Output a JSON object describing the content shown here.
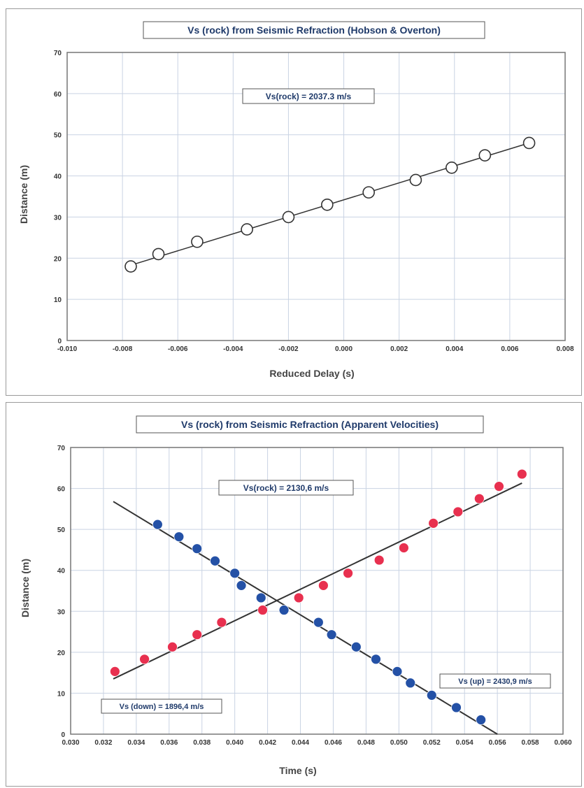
{
  "chart_data": [
    {
      "type": "scatter",
      "title": "Vs (rock) from Seismic Refraction (Hobson & Overton)",
      "xlabel": "Reduced Delay (s)",
      "ylabel": "Distance (m)",
      "xlim": [
        -0.01,
        0.008
      ],
      "ylim": [
        0,
        70
      ],
      "xticks": [
        "-0.010",
        "-0.008",
        "-0.006",
        "-0.004",
        "-0.002",
        "0.000",
        "0.002",
        "0.004",
        "0.006",
        "0.008"
      ],
      "yticks": [
        "0",
        "10",
        "20",
        "30",
        "40",
        "50",
        "60",
        "70"
      ],
      "grid": true,
      "annotation": "Vs(rock) = 2037.3 m/s",
      "series": [
        {
          "marker": "open-circle",
          "color": "#333333",
          "x": [
            -0.0077,
            -0.0067,
            -0.0053,
            -0.0035,
            -0.002,
            -0.0006,
            0.0009,
            0.0026,
            0.0039,
            0.0051,
            0.0067
          ],
          "y": [
            18,
            21,
            24,
            27,
            30,
            33,
            36,
            39,
            42,
            45,
            48
          ]
        }
      ],
      "fit_lines": [
        {
          "color": "#333333",
          "x": [
            -0.0077,
            0.0067
          ],
          "y": [
            18.3,
            48.0
          ]
        }
      ]
    },
    {
      "type": "scatter",
      "title": "Vs (rock) from Seismic Refraction (Apparent Velocities)",
      "xlabel": "Time (s)",
      "ylabel": "Distance (m)",
      "xlim": [
        0.03,
        0.06
      ],
      "ylim": [
        0,
        70
      ],
      "xticks": [
        "0.030",
        "0.032",
        "0.034",
        "0.036",
        "0.038",
        "0.040",
        "0.042",
        "0.044",
        "0.046",
        "0.048",
        "0.050",
        "0.052",
        "0.054",
        "0.056",
        "0.058",
        "0.060"
      ],
      "yticks": [
        "0",
        "10",
        "20",
        "30",
        "40",
        "50",
        "60",
        "70"
      ],
      "grid": true,
      "annotations": [
        {
          "text": "Vs(rock) = 2130,6 m/s"
        },
        {
          "text": "Vs (up) = 2430,9 m/s"
        },
        {
          "text": "Vs (down) = 1896,4 m/s"
        }
      ],
      "series": [
        {
          "marker": "filled-circle",
          "color": "#e8304f",
          "x": [
            0.0327,
            0.0345,
            0.0362,
            0.0377,
            0.0392,
            0.0417,
            0.0439,
            0.0454,
            0.0469,
            0.0488,
            0.0503,
            0.0521,
            0.0536,
            0.0549,
            0.0561,
            0.0575
          ],
          "y": [
            15.3,
            18.3,
            21.3,
            24.3,
            27.3,
            30.3,
            33.3,
            36.3,
            39.3,
            42.5,
            45.5,
            51.5,
            54.3,
            57.5,
            60.5,
            63.5
          ]
        },
        {
          "marker": "filled-circle",
          "color": "#2451a6",
          "x": [
            0.0353,
            0.0366,
            0.0377,
            0.0388,
            0.04,
            0.0404,
            0.0416,
            0.043,
            0.0451,
            0.0459,
            0.0474,
            0.0486,
            0.0499,
            0.0507,
            0.052,
            0.0535,
            0.055
          ],
          "y": [
            51.2,
            48.2,
            45.3,
            42.3,
            39.3,
            36.3,
            33.3,
            30.3,
            27.3,
            24.3,
            21.3,
            18.3,
            15.3,
            12.5,
            9.5,
            6.5,
            3.5
          ]
        }
      ],
      "fit_lines": [
        {
          "color": "#333333",
          "x": [
            0.0326,
            0.0575
          ],
          "y": [
            13.5,
            61.3
          ]
        },
        {
          "color": "#333333",
          "x": [
            0.0326,
            0.056
          ],
          "y": [
            56.8,
            0.0
          ]
        }
      ]
    }
  ]
}
